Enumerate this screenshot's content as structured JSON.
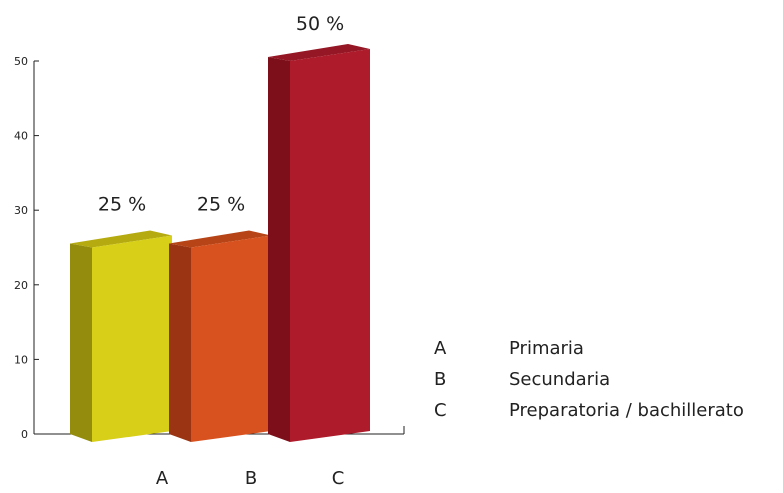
{
  "chart_data": {
    "type": "bar",
    "categories": [
      "A",
      "B",
      "C"
    ],
    "values": [
      25,
      25,
      50
    ],
    "data_labels": [
      "25 %",
      "25 %",
      "50 %"
    ],
    "yticks": [
      "0",
      "10",
      "20",
      "30",
      "40",
      "50"
    ],
    "ylim": [
      0,
      50
    ],
    "bar_colors": [
      {
        "front": "#d7cf18",
        "side": "#938c0c",
        "top": "#b5ab10"
      },
      {
        "front": "#d8521f",
        "side": "#9a3412",
        "top": "#b64416"
      },
      {
        "front": "#ae1b2b",
        "side": "#7d0f1a",
        "top": "#951624"
      }
    ],
    "style": "3d-bars",
    "legend_position": "right",
    "legend": [
      {
        "key": "A",
        "label": "Primaria"
      },
      {
        "key": "B",
        "label": "Secundaria"
      },
      {
        "key": "C",
        "label": "Preparatoria / bachillerato"
      }
    ]
  }
}
